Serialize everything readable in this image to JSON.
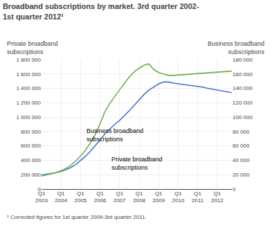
{
  "chart_data": {
    "type": "line",
    "title": "Broadband subscriptions by market. 3rd quarter 2002-\n1st quarter 2012¹",
    "footnote": "¹ Corrected figures for 1st quarter 2009-3rd quarter 2011.",
    "ylabel": "Private broadband\nsubscriptions",
    "y2label": "Business broadband\nsubscriptions",
    "categories": [
      "Q1\n2003",
      null,
      null,
      null,
      "Q1\n2004",
      null,
      null,
      null,
      "Q1\n2005",
      null,
      null,
      null,
      "Q1\n2006",
      null,
      null,
      null,
      "Q1\n2007",
      null,
      null,
      null,
      "Q1\n2008",
      null,
      null,
      null,
      "Q1\n2009",
      null,
      null,
      null,
      "Q1\n2010",
      null,
      null,
      null,
      "Q1\n2011",
      null,
      null,
      null,
      "Q1\n2012",
      null,
      null,
      null
    ],
    "series": [
      {
        "color": "#4472c4",
        "values": [
          195000,
          205000,
          215000,
          228000,
          245000,
          268000,
          298000,
          340000,
          395000,
          455000,
          525000,
          600000,
          680000,
          770000,
          840000,
          900000,
          955000,
          1020000,
          1090000,
          1165000,
          1240000,
          1315000,
          1375000,
          1420000,
          1460000,
          1488000,
          1488000,
          1472000,
          1462000,
          1452000,
          1445000,
          1438000,
          1428000,
          1418000,
          1400000,
          1388000,
          1375000,
          1362000,
          1350000,
          1340000
        ]
      },
      {
        "color": "#70ad47",
        "axis": "y2",
        "values": [
          18000,
          19500,
          21000,
          23000,
          25500,
          28500,
          33000,
          39000,
          46000,
          54000,
          64000,
          76000,
          91000,
          108000,
          119000,
          129000,
          138000,
          147000,
          156000,
          163000,
          168000,
          172000,
          174000,
          166000,
          162000,
          160000,
          158000,
          158000,
          158500,
          159000,
          159500,
          160000,
          160500,
          161000,
          161500,
          162000,
          162500,
          163000,
          163500,
          164000
        ]
      }
    ],
    "ylim": [
      0,
      1800000
    ],
    "yticks": [
      0,
      {
        "value": 200000,
        "label": "200 000"
      },
      {
        "value": 400000,
        "label": "400 000"
      },
      {
        "value": 600000,
        "label": "600 000"
      },
      {
        "value": 800000,
        "label": "800 000"
      },
      {
        "value": 1000000,
        "label": "1 000 000"
      },
      {
        "value": 1200000,
        "label": "1 200 000"
      },
      {
        "value": 1400000,
        "label": "1 400 000"
      },
      {
        "value": 1600000,
        "label": "1 600 000"
      },
      {
        "value": 1800000,
        "label": "1 800 000"
      }
    ],
    "y2lim": [
      0,
      180000
    ],
    "y2ticks": [
      0,
      {
        "value": 20000,
        "label": "20 000"
      },
      {
        "value": 40000,
        "label": "40 000"
      },
      {
        "value": 60000,
        "label": "60 000"
      },
      {
        "value": 80000,
        "label": "80 000"
      },
      {
        "value": 100000,
        "label": "100 000"
      },
      {
        "value": 120000,
        "label": "120 000"
      },
      {
        "value": 140000,
        "label": "140 000"
      },
      {
        "value": 160000,
        "label": "160 000"
      },
      {
        "value": 180000,
        "label": "180 000"
      }
    ],
    "annotations": [
      {
        "text": "Business broadband\nsubscriptions",
        "x": 9,
        "y": 880000
      },
      {
        "text": "Private broadband\nsubscriptions",
        "x": 14,
        "y": 480000
      }
    ],
    "grid": true,
    "legend": false
  }
}
